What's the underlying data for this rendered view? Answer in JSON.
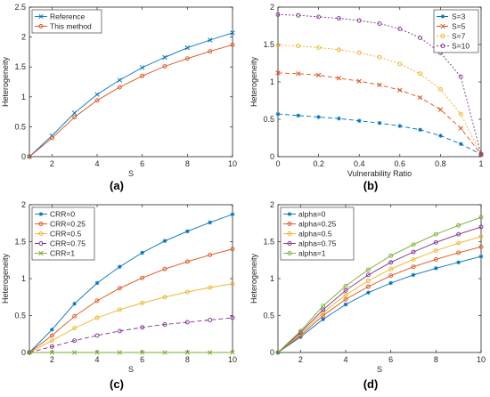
{
  "panels": [
    {
      "letter": "(a)",
      "chart_data": {
        "type": "line",
        "title": "",
        "xlabel": "S",
        "ylabel": "Heterogeneity",
        "xlim": [
          1,
          10
        ],
        "ylim": [
          0,
          2.5
        ],
        "xticks": [
          2,
          4,
          6,
          8,
          10
        ],
        "yticks": [
          0,
          0.5,
          1,
          1.5,
          2,
          2.5
        ],
        "legend_position": "top-left",
        "grid": false,
        "series": [
          {
            "name": "Reference",
            "color": "#0072BD",
            "marker": "x",
            "dash": "none",
            "x": [
              1,
              2,
              3,
              4,
              5,
              6,
              7,
              8,
              9,
              10
            ],
            "y": [
              0,
              0.35,
              0.73,
              1.04,
              1.28,
              1.49,
              1.66,
              1.82,
              1.95,
              2.07
            ]
          },
          {
            "name": "This method",
            "color": "#D95319",
            "marker": "o",
            "dash": "none",
            "x": [
              1,
              2,
              3,
              4,
              5,
              6,
              7,
              8,
              9,
              10
            ],
            "y": [
              0,
              0.31,
              0.66,
              0.94,
              1.16,
              1.35,
              1.51,
              1.64,
              1.76,
              1.87
            ]
          }
        ]
      }
    },
    {
      "letter": "(b)",
      "chart_data": {
        "type": "line",
        "title": "",
        "xlabel": "Vulnerability Ratio",
        "ylabel": "Heterogeneity",
        "xlim": [
          0,
          1
        ],
        "ylim": [
          0,
          2
        ],
        "xticks": [
          0,
          0.2,
          0.4,
          0.6,
          0.8,
          1
        ],
        "yticks": [
          0,
          0.5,
          1,
          1.5,
          2
        ],
        "legend_position": "top-right",
        "grid": false,
        "series": [
          {
            "name": "S=3",
            "color": "#0072BD",
            "marker": "*",
            "dash": "5,3",
            "x": [
              0,
              0.1,
              0.2,
              0.3,
              0.4,
              0.5,
              0.6,
              0.7,
              0.8,
              0.9,
              1
            ],
            "y": [
              0.57,
              0.55,
              0.53,
              0.51,
              0.48,
              0.45,
              0.41,
              0.36,
              0.28,
              0.17,
              0.03
            ]
          },
          {
            "name": "S=5",
            "color": "#D95319",
            "marker": "x",
            "dash": "5,3",
            "x": [
              0,
              0.1,
              0.2,
              0.3,
              0.4,
              0.5,
              0.6,
              0.7,
              0.8,
              0.9,
              1
            ],
            "y": [
              1.12,
              1.11,
              1.09,
              1.05,
              1.01,
              0.96,
              0.89,
              0.79,
              0.63,
              0.38,
              0.03
            ]
          },
          {
            "name": "S=7",
            "color": "#EDB120",
            "marker": "o",
            "dash": "2,2",
            "x": [
              0,
              0.1,
              0.2,
              0.3,
              0.4,
              0.5,
              0.6,
              0.7,
              0.8,
              0.9,
              1
            ],
            "y": [
              1.49,
              1.48,
              1.46,
              1.43,
              1.39,
              1.33,
              1.24,
              1.11,
              0.9,
              0.57,
              0.03
            ]
          },
          {
            "name": "S=10",
            "color": "#7E2F8E",
            "marker": "o",
            "dash": "2,2",
            "x": [
              0,
              0.1,
              0.2,
              0.3,
              0.4,
              0.5,
              0.6,
              0.7,
              0.8,
              0.9,
              1
            ],
            "y": [
              1.9,
              1.89,
              1.87,
              1.85,
              1.82,
              1.78,
              1.71,
              1.59,
              1.39,
              1.07,
              0.03
            ]
          }
        ]
      }
    },
    {
      "letter": "(c)",
      "chart_data": {
        "type": "line",
        "title": "",
        "xlabel": "S",
        "ylabel": "Heterogeneity",
        "xlim": [
          1,
          10
        ],
        "ylim": [
          0,
          2
        ],
        "xticks": [
          2,
          4,
          6,
          8,
          10
        ],
        "yticks": [
          0,
          0.5,
          1,
          1.5,
          2
        ],
        "legend_position": "top-left",
        "grid": false,
        "series": [
          {
            "name": "CRR=0",
            "color": "#0072BD",
            "marker": "*",
            "dash": "none",
            "x": [
              1,
              2,
              3,
              4,
              5,
              6,
              7,
              8,
              9,
              10
            ],
            "y": [
              0,
              0.31,
              0.66,
              0.94,
              1.16,
              1.35,
              1.51,
              1.64,
              1.76,
              1.87
            ]
          },
          {
            "name": "CRR=0.25",
            "color": "#D95319",
            "marker": "o",
            "dash": "none",
            "x": [
              1,
              2,
              3,
              4,
              5,
              6,
              7,
              8,
              9,
              10
            ],
            "y": [
              0,
              0.23,
              0.49,
              0.7,
              0.87,
              1.01,
              1.13,
              1.23,
              1.32,
              1.4
            ]
          },
          {
            "name": "CRR=0.5",
            "color": "#EDB120",
            "marker": "o",
            "dash": "none",
            "x": [
              1,
              2,
              3,
              4,
              5,
              6,
              7,
              8,
              9,
              10
            ],
            "y": [
              0,
              0.16,
              0.33,
              0.47,
              0.58,
              0.67,
              0.75,
              0.82,
              0.88,
              0.93
            ]
          },
          {
            "name": "CRR=0.75",
            "color": "#7E2F8E",
            "marker": "o",
            "dash": "5,3",
            "x": [
              1,
              2,
              3,
              4,
              5,
              6,
              7,
              8,
              9,
              10
            ],
            "y": [
              0,
              0.08,
              0.16,
              0.23,
              0.29,
              0.34,
              0.38,
              0.41,
              0.44,
              0.47
            ]
          },
          {
            "name": "CRR=1",
            "color": "#77AC30",
            "marker": "x",
            "dash": "none",
            "x": [
              1,
              2,
              3,
              4,
              5,
              6,
              7,
              8,
              9,
              10
            ],
            "y": [
              0,
              0,
              0,
              0,
              0,
              0,
              0,
              0,
              0,
              0
            ]
          }
        ]
      }
    },
    {
      "letter": "(d)",
      "chart_data": {
        "type": "line",
        "title": "",
        "xlabel": "S",
        "ylabel": "Heterogeneity",
        "xlim": [
          1,
          10
        ],
        "ylim": [
          0,
          2
        ],
        "xticks": [
          2,
          4,
          6,
          8,
          10
        ],
        "yticks": [
          0,
          0.5,
          1,
          1.5,
          2
        ],
        "legend_position": "top-left",
        "grid": false,
        "series": [
          {
            "name": "alpha=0",
            "color": "#0072BD",
            "marker": "*",
            "dash": "none",
            "x": [
              1,
              2,
              3,
              4,
              5,
              6,
              7,
              8,
              9,
              10
            ],
            "y": [
              0,
              0.21,
              0.45,
              0.65,
              0.81,
              0.94,
              1.05,
              1.14,
              1.22,
              1.3
            ]
          },
          {
            "name": "alpha=0.25",
            "color": "#D95319",
            "marker": "o",
            "dash": "none",
            "x": [
              1,
              2,
              3,
              4,
              5,
              6,
              7,
              8,
              9,
              10
            ],
            "y": [
              0,
              0.23,
              0.5,
              0.72,
              0.89,
              1.04,
              1.16,
              1.26,
              1.35,
              1.43
            ]
          },
          {
            "name": "alpha=0.5",
            "color": "#EDB120",
            "marker": "o",
            "dash": "none",
            "x": [
              1,
              2,
              3,
              4,
              5,
              6,
              7,
              8,
              9,
              10
            ],
            "y": [
              0,
              0.25,
              0.54,
              0.78,
              0.97,
              1.13,
              1.26,
              1.38,
              1.48,
              1.57
            ]
          },
          {
            "name": "alpha=0.75",
            "color": "#7E2F8E",
            "marker": "o",
            "dash": "none",
            "x": [
              1,
              2,
              3,
              4,
              5,
              6,
              7,
              8,
              9,
              10
            ],
            "y": [
              0,
              0.27,
              0.58,
              0.84,
              1.05,
              1.22,
              1.36,
              1.49,
              1.6,
              1.7
            ]
          },
          {
            "name": "alpha=1",
            "color": "#77AC30",
            "marker": "o",
            "dash": "none",
            "x": [
              1,
              2,
              3,
              4,
              5,
              6,
              7,
              8,
              9,
              10
            ],
            "y": [
              0,
              0.29,
              0.63,
              0.9,
              1.12,
              1.31,
              1.46,
              1.6,
              1.72,
              1.83
            ]
          }
        ]
      }
    }
  ]
}
